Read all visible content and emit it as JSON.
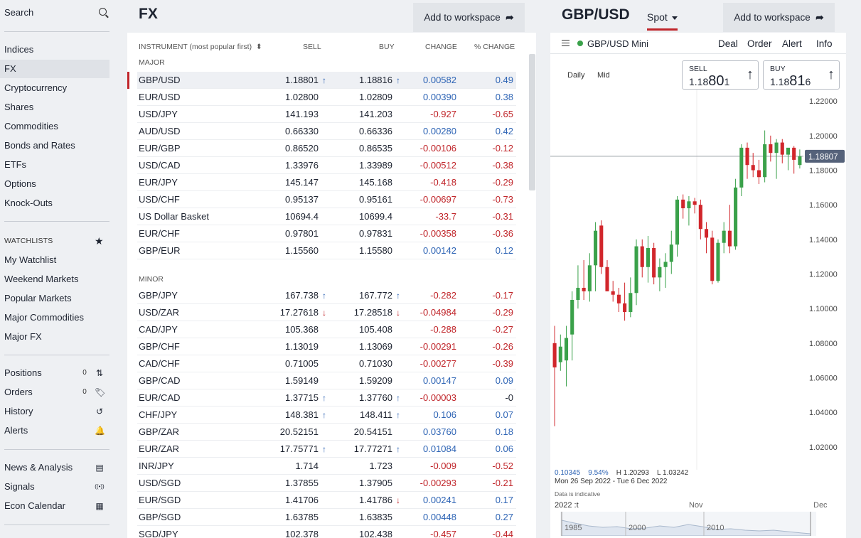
{
  "sidebar": {
    "search_label": "Search",
    "markets": [
      {
        "label": "Indices",
        "active": false
      },
      {
        "label": "FX",
        "active": true
      },
      {
        "label": "Cryptocurrency",
        "active": false
      },
      {
        "label": "Shares",
        "active": false
      },
      {
        "label": "Commodities",
        "active": false
      },
      {
        "label": "Bonds and Rates",
        "active": false
      },
      {
        "label": "ETFs",
        "active": false
      },
      {
        "label": "Options",
        "active": false
      },
      {
        "label": "Knock-Outs",
        "active": false
      }
    ],
    "watchlists_heading": "WATCHLISTS",
    "watchlists": [
      "My Watchlist",
      "Weekend Markets",
      "Popular Markets",
      "Major Commodities",
      "Major FX"
    ],
    "account": [
      {
        "label": "Positions",
        "count": "0",
        "icon": "transfer-arrows-icon"
      },
      {
        "label": "Orders",
        "count": "0",
        "icon": "tag-icon"
      },
      {
        "label": "History",
        "count": "",
        "icon": "history-clock-icon"
      },
      {
        "label": "Alerts",
        "count": "",
        "icon": "bell-icon"
      }
    ],
    "tools": [
      {
        "label": "News & Analysis",
        "icon": "newspaper-icon"
      },
      {
        "label": "Signals",
        "icon": "signal-broadcast-icon"
      },
      {
        "label": "Econ Calendar",
        "icon": "calendar-icon"
      }
    ]
  },
  "fx": {
    "title": "FX",
    "add_to_workspace": "Add to workspace",
    "columns": {
      "instrument": "INSTRUMENT (most popular first)",
      "sell": "SELL",
      "buy": "BUY",
      "change": "CHANGE",
      "pct_change": "% CHANGE"
    },
    "groups": [
      {
        "name": "MAJOR",
        "rows": [
          {
            "name": "GBP/USD",
            "sell": "1.18801",
            "sell_arrow": "up",
            "buy": "1.18816",
            "buy_arrow": "up",
            "change": "0.00582",
            "pct": "0.49",
            "selected": true
          },
          {
            "name": "EUR/USD",
            "sell": "1.02800",
            "sell_arrow": "",
            "buy": "1.02809",
            "buy_arrow": "",
            "change": "0.00390",
            "pct": "0.38"
          },
          {
            "name": "USD/JPY",
            "sell": "141.193",
            "sell_arrow": "",
            "buy": "141.203",
            "buy_arrow": "",
            "change": "-0.927",
            "pct": "-0.65"
          },
          {
            "name": "AUD/USD",
            "sell": "0.66330",
            "sell_arrow": "",
            "buy": "0.66336",
            "buy_arrow": "",
            "change": "0.00280",
            "pct": "0.42"
          },
          {
            "name": "EUR/GBP",
            "sell": "0.86520",
            "sell_arrow": "",
            "buy": "0.86535",
            "buy_arrow": "",
            "change": "-0.00106",
            "pct": "-0.12"
          },
          {
            "name": "USD/CAD",
            "sell": "1.33976",
            "sell_arrow": "",
            "buy": "1.33989",
            "buy_arrow": "",
            "change": "-0.00512",
            "pct": "-0.38"
          },
          {
            "name": "EUR/JPY",
            "sell": "145.147",
            "sell_arrow": "",
            "buy": "145.168",
            "buy_arrow": "",
            "change": "-0.418",
            "pct": "-0.29"
          },
          {
            "name": "USD/CHF",
            "sell": "0.95137",
            "sell_arrow": "",
            "buy": "0.95161",
            "buy_arrow": "",
            "change": "-0.00697",
            "pct": "-0.73"
          },
          {
            "name": "US Dollar Basket",
            "sell": "10694.4",
            "sell_arrow": "",
            "buy": "10699.4",
            "buy_arrow": "",
            "change": "-33.7",
            "pct": "-0.31"
          },
          {
            "name": "EUR/CHF",
            "sell": "0.97801",
            "sell_arrow": "",
            "buy": "0.97831",
            "buy_arrow": "",
            "change": "-0.00358",
            "pct": "-0.36"
          },
          {
            "name": "GBP/EUR",
            "sell": "1.15560",
            "sell_arrow": "",
            "buy": "1.15580",
            "buy_arrow": "",
            "change": "0.00142",
            "pct": "0.12"
          }
        ]
      },
      {
        "name": "MINOR",
        "rows": [
          {
            "name": "GBP/JPY",
            "sell": "167.738",
            "sell_arrow": "up",
            "buy": "167.772",
            "buy_arrow": "up",
            "change": "-0.282",
            "pct": "-0.17"
          },
          {
            "name": "USD/ZAR",
            "sell": "17.27618",
            "sell_arrow": "down",
            "buy": "17.28518",
            "buy_arrow": "down",
            "change": "-0.04984",
            "pct": "-0.29"
          },
          {
            "name": "CAD/JPY",
            "sell": "105.368",
            "sell_arrow": "",
            "buy": "105.408",
            "buy_arrow": "",
            "change": "-0.288",
            "pct": "-0.27"
          },
          {
            "name": "GBP/CHF",
            "sell": "1.13019",
            "sell_arrow": "",
            "buy": "1.13069",
            "buy_arrow": "",
            "change": "-0.00291",
            "pct": "-0.26"
          },
          {
            "name": "CAD/CHF",
            "sell": "0.71005",
            "sell_arrow": "",
            "buy": "0.71030",
            "buy_arrow": "",
            "change": "-0.00277",
            "pct": "-0.39"
          },
          {
            "name": "GBP/CAD",
            "sell": "1.59149",
            "sell_arrow": "",
            "buy": "1.59209",
            "buy_arrow": "",
            "change": "0.00147",
            "pct": "0.09"
          },
          {
            "name": "EUR/CAD",
            "sell": "1.37715",
            "sell_arrow": "up",
            "buy": "1.37760",
            "buy_arrow": "up",
            "change": "-0.00003",
            "pct": "-0"
          },
          {
            "name": "CHF/JPY",
            "sell": "148.381",
            "sell_arrow": "up",
            "buy": "148.411",
            "buy_arrow": "up",
            "change": "0.106",
            "pct": "0.07"
          },
          {
            "name": "GBP/ZAR",
            "sell": "20.52151",
            "sell_arrow": "",
            "buy": "20.54151",
            "buy_arrow": "",
            "change": "0.03760",
            "pct": "0.18"
          },
          {
            "name": "EUR/ZAR",
            "sell": "17.75771",
            "sell_arrow": "up",
            "buy": "17.77271",
            "buy_arrow": "up",
            "change": "0.01084",
            "pct": "0.06"
          },
          {
            "name": "INR/JPY",
            "sell": "1.714",
            "sell_arrow": "",
            "buy": "1.723",
            "buy_arrow": "",
            "change": "-0.009",
            "pct": "-0.52"
          },
          {
            "name": "USD/SGD",
            "sell": "1.37855",
            "sell_arrow": "",
            "buy": "1.37905",
            "buy_arrow": "",
            "change": "-0.00293",
            "pct": "-0.21"
          },
          {
            "name": "EUR/SGD",
            "sell": "1.41706",
            "sell_arrow": "",
            "buy": "1.41786",
            "buy_arrow": "down",
            "change": "0.00241",
            "pct": "0.17"
          },
          {
            "name": "GBP/SGD",
            "sell": "1.63785",
            "sell_arrow": "",
            "buy": "1.63835",
            "buy_arrow": "",
            "change": "0.00448",
            "pct": "0.27"
          },
          {
            "name": "SGD/JPY",
            "sell": "102.378",
            "sell_arrow": "",
            "buy": "102.438",
            "buy_arrow": "",
            "change": "-0.457",
            "pct": "-0.44"
          }
        ]
      }
    ]
  },
  "detail": {
    "title": "GBP/USD",
    "spot_label": "Spot",
    "add_to_workspace": "Add to workspace",
    "market_name": "GBP/USD Mini",
    "actions": [
      "Deal",
      "Order",
      "Alert",
      "Info"
    ],
    "chart_tabs": [
      "Daily",
      "Mid"
    ],
    "sell": {
      "label": "SELL",
      "prefix": "1.18",
      "big": "80",
      "suffix": "1"
    },
    "buy": {
      "label": "BUY",
      "prefix": "1.18",
      "big": "81",
      "suffix": "6"
    },
    "stats": {
      "change": "0.10345",
      "pct": "9.54%",
      "high": "H 1.20293",
      "low": "L 1.03242"
    },
    "date_range": "Mon 26 Sep 2022 - Tue 6 Dec 2022",
    "indicative": "Data is indicative",
    "timeline": {
      "year": "2022",
      "markers": [
        ":t",
        "Nov",
        "Dec"
      ],
      "nav_years": [
        "1985",
        "2000",
        "2010"
      ]
    },
    "colors": {
      "up": "#3aa14a",
      "down": "#d1262b",
      "accent": "#c0252a",
      "price_tag": "#55627a"
    }
  },
  "chart_data": {
    "type": "candlestick",
    "y_ticks": [
      "1.22000",
      "1.20000",
      "1.18000",
      "1.16000",
      "1.14000",
      "1.12000",
      "1.10000",
      "1.08000",
      "1.06000",
      "1.04000",
      "1.02000"
    ],
    "ylim": [
      1.015,
      1.225
    ],
    "current_price": "1.18807",
    "x_labels": [
      ":t",
      "Nov",
      "Dec"
    ],
    "candles": [
      {
        "o": 1.08,
        "h": 1.09,
        "l": 1.032,
        "c": 1.066
      },
      {
        "o": 1.069,
        "h": 1.085,
        "l": 1.064,
        "c": 1.078
      },
      {
        "o": 1.07,
        "h": 1.09,
        "l": 1.055,
        "c": 1.083
      },
      {
        "o": 1.085,
        "h": 1.11,
        "l": 1.07,
        "c": 1.105
      },
      {
        "o": 1.105,
        "h": 1.125,
        "l": 1.1,
        "c": 1.112
      },
      {
        "o": 1.112,
        "h": 1.128,
        "l": 1.105,
        "c": 1.11
      },
      {
        "o": 1.11,
        "h": 1.132,
        "l": 1.104,
        "c": 1.125
      },
      {
        "o": 1.125,
        "h": 1.15,
        "l": 1.11,
        "c": 1.145
      },
      {
        "o": 1.148,
        "h": 1.151,
        "l": 1.12,
        "c": 1.124
      },
      {
        "o": 1.124,
        "h": 1.128,
        "l": 1.11,
        "c": 1.11
      },
      {
        "o": 1.11,
        "h": 1.116,
        "l": 1.104,
        "c": 1.108
      },
      {
        "o": 1.108,
        "h": 1.112,
        "l": 1.098,
        "c": 1.103
      },
      {
        "o": 1.103,
        "h": 1.115,
        "l": 1.093,
        "c": 1.098
      },
      {
        "o": 1.098,
        "h": 1.118,
        "l": 1.095,
        "c": 1.109
      },
      {
        "o": 1.109,
        "h": 1.14,
        "l": 1.102,
        "c": 1.136
      },
      {
        "o": 1.136,
        "h": 1.14,
        "l": 1.118,
        "c": 1.124
      },
      {
        "o": 1.124,
        "h": 1.142,
        "l": 1.115,
        "c": 1.135
      },
      {
        "o": 1.135,
        "h": 1.138,
        "l": 1.114,
        "c": 1.118
      },
      {
        "o": 1.118,
        "h": 1.129,
        "l": 1.11,
        "c": 1.124
      },
      {
        "o": 1.124,
        "h": 1.132,
        "l": 1.112,
        "c": 1.127
      },
      {
        "o": 1.127,
        "h": 1.145,
        "l": 1.12,
        "c": 1.137
      },
      {
        "o": 1.137,
        "h": 1.165,
        "l": 1.13,
        "c": 1.163
      },
      {
        "o": 1.163,
        "h": 1.166,
        "l": 1.152,
        "c": 1.158
      },
      {
        "o": 1.158,
        "h": 1.165,
        "l": 1.148,
        "c": 1.162
      },
      {
        "o": 1.162,
        "h": 1.164,
        "l": 1.155,
        "c": 1.16
      },
      {
        "o": 1.16,
        "h": 1.163,
        "l": 1.14,
        "c": 1.146
      },
      {
        "o": 1.146,
        "h": 1.15,
        "l": 1.132,
        "c": 1.141
      },
      {
        "o": 1.141,
        "h": 1.145,
        "l": 1.114,
        "c": 1.116
      },
      {
        "o": 1.116,
        "h": 1.14,
        "l": 1.115,
        "c": 1.138
      },
      {
        "o": 1.138,
        "h": 1.15,
        "l": 1.132,
        "c": 1.145
      },
      {
        "o": 1.145,
        "h": 1.16,
        "l": 1.132,
        "c": 1.136
      },
      {
        "o": 1.136,
        "h": 1.175,
        "l": 1.134,
        "c": 1.17
      },
      {
        "o": 1.17,
        "h": 1.195,
        "l": 1.165,
        "c": 1.193
      },
      {
        "o": 1.193,
        "h": 1.196,
        "l": 1.175,
        "c": 1.183
      },
      {
        "o": 1.183,
        "h": 1.19,
        "l": 1.176,
        "c": 1.18
      },
      {
        "o": 1.18,
        "h": 1.186,
        "l": 1.172,
        "c": 1.176
      },
      {
        "o": 1.176,
        "h": 1.203,
        "l": 1.173,
        "c": 1.195
      },
      {
        "o": 1.195,
        "h": 1.2,
        "l": 1.185,
        "c": 1.19
      },
      {
        "o": 1.19,
        "h": 1.198,
        "l": 1.175,
        "c": 1.196
      },
      {
        "o": 1.196,
        "h": 1.198,
        "l": 1.184,
        "c": 1.189
      },
      {
        "o": 1.189,
        "h": 1.192,
        "l": 1.18,
        "c": 1.193
      },
      {
        "o": 1.193,
        "h": 1.194,
        "l": 1.178,
        "c": 1.186
      },
      {
        "o": 1.183,
        "h": 1.192,
        "l": 1.181,
        "c": 1.188
      }
    ]
  }
}
